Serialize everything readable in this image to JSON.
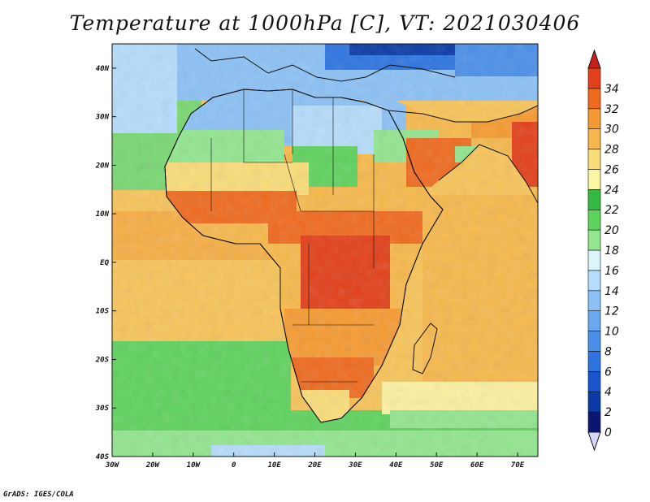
{
  "title": "Temperature at 1000hPa [C], VT: 2021030406",
  "credit": "GrADS: IGES/COLA",
  "map": {
    "lon_range": [
      -30,
      75
    ],
    "lat_range": [
      -40,
      45
    ],
    "lon_ticks": [
      {
        "v": -30,
        "label": "30W"
      },
      {
        "v": -20,
        "label": "20W"
      },
      {
        "v": -10,
        "label": "10W"
      },
      {
        "v": 0,
        "label": "0"
      },
      {
        "v": 10,
        "label": "10E"
      },
      {
        "v": 20,
        "label": "20E"
      },
      {
        "v": 30,
        "label": "30E"
      },
      {
        "v": 40,
        "label": "40E"
      },
      {
        "v": 50,
        "label": "50E"
      },
      {
        "v": 60,
        "label": "60E"
      },
      {
        "v": 70,
        "label": "70E"
      }
    ],
    "lat_ticks": [
      {
        "v": 40,
        "label": "40N"
      },
      {
        "v": 30,
        "label": "30N"
      },
      {
        "v": 20,
        "label": "20N"
      },
      {
        "v": 10,
        "label": "10N"
      },
      {
        "v": 0,
        "label": "EQ"
      },
      {
        "v": -10,
        "label": "10S"
      },
      {
        "v": -20,
        "label": "20S"
      },
      {
        "v": -30,
        "label": "30S"
      },
      {
        "v": -40,
        "label": "40S"
      }
    ]
  },
  "colorbar": {
    "levels": [
      0,
      2,
      4,
      6,
      8,
      10,
      12,
      14,
      16,
      18,
      20,
      22,
      24,
      26,
      28,
      30,
      32,
      34
    ],
    "colors": [
      "#0b1670",
      "#0a3aa6",
      "#1a55cf",
      "#2d74e0",
      "#4b8fe8",
      "#6aa7ef",
      "#8cc1f5",
      "#b5dcfb",
      "#dcf5fb",
      "#93e58f",
      "#5fd25e",
      "#36b844",
      "#fbf6a2",
      "#f9dc79",
      "#f6b84c",
      "#f59a32",
      "#ef6a1f",
      "#e2401a"
    ],
    "under_color": "#d8d8fa",
    "over_color": "#c8201a"
  }
}
